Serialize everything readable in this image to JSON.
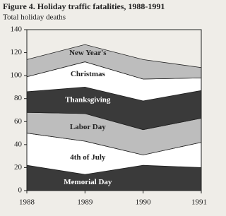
{
  "chart_data": {
    "type": "stacked_area",
    "title": "Figure 4. Holiday traffic fatalities, 1988-1991",
    "subtitle": "Total holiday deaths",
    "x": [
      1988,
      1989,
      1990,
      1991
    ],
    "xlim": [
      1988,
      1991
    ],
    "xticks": [
      1988,
      1989,
      1990,
      1991
    ],
    "ylim": [
      0,
      140
    ],
    "yticks": [
      0,
      20,
      40,
      60,
      80,
      100,
      120,
      140
    ],
    "series": [
      {
        "name": "Memorial Day",
        "color": "#3a3a3a",
        "values": [
          22,
          14,
          22,
          20
        ]
      },
      {
        "name": "4th of July",
        "color": "#ffffff",
        "values": [
          28,
          29,
          9,
          22
        ]
      },
      {
        "name": "Labor Day",
        "color": "#bdbdbd",
        "values": [
          18,
          24,
          22,
          21
        ]
      },
      {
        "name": "Thanksgiving",
        "color": "#3a3a3a",
        "values": [
          18,
          23,
          25,
          24
        ]
      },
      {
        "name": "Christmas",
        "color": "#ffffff",
        "values": [
          13,
          22,
          19,
          11
        ]
      },
      {
        "name": "New Year's",
        "color": "#bdbdbd",
        "values": [
          15,
          15,
          17,
          9
        ]
      }
    ]
  }
}
